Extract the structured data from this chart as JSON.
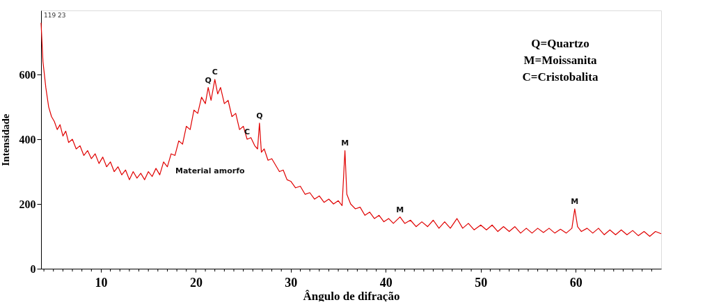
{
  "chart_data": {
    "type": "line",
    "xlabel": "Ângulo de difração",
    "ylabel": "Intensidade",
    "x": [
      3.7,
      3.9,
      4.2,
      4.5,
      4.8,
      5.1,
      5.4,
      5.7,
      6.0,
      6.3,
      6.6,
      7.0,
      7.4,
      7.8,
      8.2,
      8.6,
      9.0,
      9.4,
      9.8,
      10.2,
      10.6,
      11.0,
      11.4,
      11.8,
      12.2,
      12.6,
      13.0,
      13.4,
      13.8,
      14.2,
      14.6,
      15.0,
      15.4,
      15.8,
      16.2,
      16.6,
      17.0,
      17.4,
      17.8,
      18.2,
      18.6,
      19.0,
      19.4,
      19.8,
      20.2,
      20.6,
      21.0,
      21.3,
      21.6,
      22.0,
      22.3,
      22.6,
      23.0,
      23.4,
      23.8,
      24.2,
      24.6,
      25.0,
      25.4,
      25.8,
      26.2,
      26.5,
      26.7,
      26.9,
      27.2,
      27.6,
      28.0,
      28.4,
      28.8,
      29.2,
      29.6,
      30.0,
      30.5,
      31.0,
      31.5,
      32.0,
      32.5,
      33.0,
      33.5,
      34.0,
      34.5,
      35.0,
      35.4,
      35.7,
      35.9,
      36.3,
      36.8,
      37.3,
      37.8,
      38.3,
      38.8,
      39.3,
      39.8,
      40.3,
      40.8,
      41.5,
      42.0,
      42.6,
      43.2,
      43.8,
      44.4,
      45.0,
      45.6,
      46.2,
      46.8,
      47.5,
      48.1,
      48.7,
      49.3,
      50.0,
      50.6,
      51.2,
      51.8,
      52.4,
      53.0,
      53.6,
      54.2,
      54.8,
      55.4,
      56.0,
      56.6,
      57.2,
      57.8,
      58.4,
      59.0,
      59.6,
      59.9,
      60.2,
      60.6,
      61.2,
      61.8,
      62.4,
      63.0,
      63.6,
      64.2,
      64.8,
      65.4,
      66.0,
      66.6,
      67.2,
      67.8,
      68.4,
      69.0
    ],
    "series": [
      {
        "color": "#e00000",
        "values": [
          760,
          640,
          560,
          500,
          470,
          455,
          430,
          445,
          410,
          425,
          390,
          400,
          370,
          380,
          350,
          365,
          340,
          355,
          325,
          345,
          315,
          330,
          300,
          315,
          290,
          305,
          275,
          300,
          280,
          295,
          275,
          300,
          285,
          310,
          290,
          330,
          315,
          355,
          350,
          395,
          385,
          440,
          430,
          490,
          480,
          530,
          510,
          560,
          520,
          585,
          540,
          560,
          510,
          520,
          470,
          480,
          430,
          440,
          400,
          405,
          380,
          370,
          450,
          360,
          370,
          335,
          340,
          320,
          300,
          305,
          275,
          270,
          250,
          255,
          230,
          235,
          215,
          225,
          205,
          215,
          200,
          210,
          195,
          365,
          230,
          200,
          185,
          190,
          165,
          175,
          155,
          165,
          145,
          155,
          140,
          160,
          140,
          150,
          130,
          145,
          130,
          150,
          125,
          145,
          125,
          155,
          125,
          140,
          120,
          135,
          120,
          135,
          115,
          130,
          115,
          130,
          110,
          125,
          110,
          125,
          112,
          125,
          110,
          122,
          110,
          125,
          185,
          130,
          115,
          125,
          110,
          125,
          105,
          120,
          105,
          120,
          105,
          118,
          102,
          115,
          100,
          115,
          108
        ]
      }
    ],
    "xlim": [
      3.7,
      69.0
    ],
    "ylim": [
      0,
      798
    ],
    "xticks": [
      {
        "value": 4,
        "label": null
      },
      {
        "value": 5,
        "label": null
      },
      {
        "value": 6,
        "label": null
      },
      {
        "value": 7,
        "label": null
      },
      {
        "value": 8,
        "label": null
      },
      {
        "value": 9,
        "label": null
      },
      10,
      {
        "value": 11,
        "label": null
      },
      {
        "value": 12,
        "label": null
      },
      {
        "value": 13,
        "label": null
      },
      {
        "value": 14,
        "label": null
      },
      {
        "value": 15,
        "label": null
      },
      {
        "value": 16,
        "label": null
      },
      {
        "value": 17,
        "label": null
      },
      {
        "value": 18,
        "label": null
      },
      {
        "value": 19,
        "label": null
      },
      20,
      {
        "value": 21,
        "label": null
      },
      {
        "value": 22,
        "label": null
      },
      {
        "value": 23,
        "label": null
      },
      {
        "value": 24,
        "label": null
      },
      {
        "value": 25,
        "label": null
      },
      {
        "value": 26,
        "label": null
      },
      {
        "value": 27,
        "label": null
      },
      {
        "value": 28,
        "label": null
      },
      {
        "value": 29,
        "label": null
      },
      30,
      {
        "value": 31,
        "label": null
      },
      {
        "value": 32,
        "label": null
      },
      {
        "value": 33,
        "label": null
      },
      {
        "value": 34,
        "label": null
      },
      {
        "value": 35,
        "label": null
      },
      {
        "value": 36,
        "label": null
      },
      {
        "value": 37,
        "label": null
      },
      {
        "value": 38,
        "label": null
      },
      {
        "value": 39,
        "label": null
      },
      40,
      {
        "value": 41,
        "label": null
      },
      {
        "value": 42,
        "label": null
      },
      {
        "value": 43,
        "label": null
      },
      {
        "value": 44,
        "label": null
      },
      {
        "value": 45,
        "label": null
      },
      {
        "value": 46,
        "label": null
      },
      {
        "value": 47,
        "label": null
      },
      {
        "value": 48,
        "label": null
      },
      {
        "value": 49,
        "label": null
      },
      50,
      {
        "value": 51,
        "label": null
      },
      {
        "value": 52,
        "label": null
      },
      {
        "value": 53,
        "label": null
      },
      {
        "value": 54,
        "label": null
      },
      {
        "value": 55,
        "label": null
      },
      {
        "value": 56,
        "label": null
      },
      {
        "value": 57,
        "label": null
      },
      {
        "value": 58,
        "label": null
      },
      {
        "value": 59,
        "label": null
      },
      60,
      {
        "value": 61,
        "label": null
      },
      {
        "value": 62,
        "label": null
      },
      {
        "value": 63,
        "label": null
      },
      {
        "value": 64,
        "label": null
      },
      {
        "value": 65,
        "label": null
      },
      {
        "value": 66,
        "label": null
      },
      {
        "value": 67,
        "label": null
      },
      {
        "value": 68,
        "label": null
      }
    ],
    "yticks": [
      0,
      200,
      400,
      600
    ],
    "grid": false,
    "marker": "none",
    "line_style": "solid",
    "annotations": [
      "119 23",
      "Q=Quartzo",
      "M=Moissanita",
      "C=Cristobalita",
      {
        "text": "Q",
        "x": 21.3,
        "y": 560
      },
      {
        "text": "C",
        "x": 22.0,
        "y": 585
      },
      {
        "text": "C",
        "x": 25.4,
        "y": 400
      },
      {
        "text": "Q",
        "x": 26.7,
        "y": 450
      },
      {
        "text": "M",
        "x": 35.7,
        "y": 365
      },
      {
        "text": "M",
        "x": 41.5,
        "y": 160
      },
      {
        "text": "M",
        "x": 59.9,
        "y": 185
      },
      "Material amorfo"
    ]
  }
}
